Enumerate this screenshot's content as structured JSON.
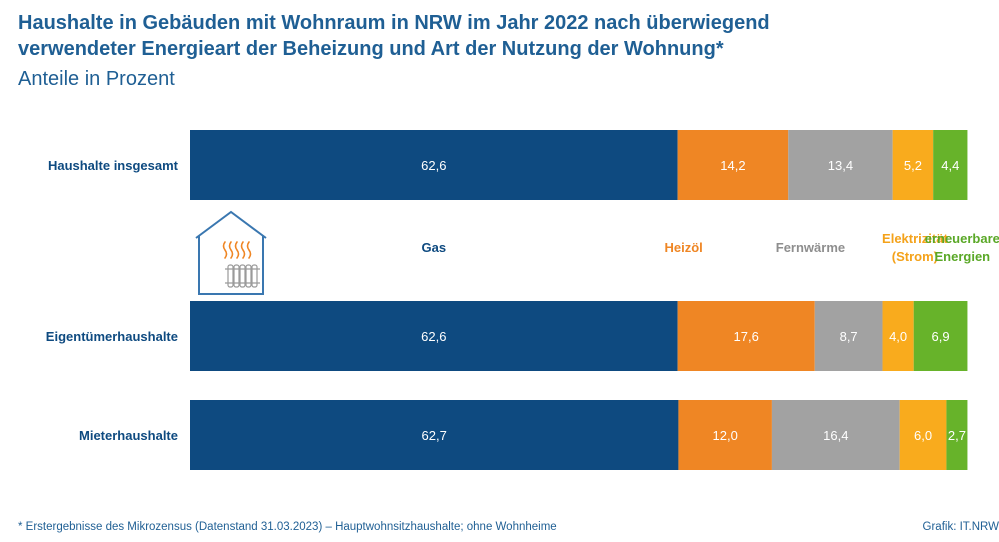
{
  "title_line1": "Haushalte in Gebäuden mit Wohnraum in NRW im Jahr 2022 nach überwiegend",
  "title_line2": "verwendeter Energieart der Beheizung und Art der Nutzung der Wohnung*",
  "subtitle": "Anteile in Prozent",
  "footnote": "* Erstergebnisse des Mikrozensus (Datenstand 31.03.2023) – Hauptwohnsitzhaushalte; ohne Wohnheime",
  "source": "Grafik: IT.NRW",
  "icon": "house-radiator-icon",
  "chart_data": {
    "type": "bar",
    "orientation": "horizontal",
    "stacked": true,
    "title": "Haushalte in Gebäuden mit Wohnraum in NRW im Jahr 2022 nach überwiegend verwendeter Energieart der Beheizung und Art der Nutzung der Wohnung*",
    "subtitle": "Anteile in Prozent",
    "xlim": [
      0,
      100
    ],
    "grid": false,
    "legend_placement": "inline-between-bars",
    "categories": [
      "Haushalte insgesamt",
      "Eigentümerhaushalte",
      "Mieterhaushalte"
    ],
    "series": [
      {
        "name": "Gas",
        "label_lines": [
          "Gas"
        ],
        "color": "#0e4a80",
        "label_color": "#0e4a80",
        "values": [
          62.6,
          62.6,
          62.7
        ],
        "labels": [
          "62,6",
          "62,6",
          "62,7"
        ]
      },
      {
        "name": "Heizöl",
        "label_lines": [
          "Heizöl"
        ],
        "color": "#ef8624",
        "label_color": "#ef8624",
        "values": [
          14.2,
          17.6,
          12.0
        ],
        "labels": [
          "14,2",
          "17,6",
          "12,0"
        ]
      },
      {
        "name": "Fernwärme",
        "label_lines": [
          "Fernwärme"
        ],
        "color": "#a2a2a2",
        "label_color": "#8e8e8e",
        "values": [
          13.4,
          8.7,
          16.4
        ],
        "labels": [
          "13,4",
          "8,7",
          "16,4"
        ]
      },
      {
        "name": "Elektrizität (Strom)",
        "label_lines": [
          "Elektrizität",
          "(Strom)"
        ],
        "color": "#f9ab1d",
        "label_color": "#f4a21a",
        "values": [
          5.2,
          4.0,
          6.0
        ],
        "labels": [
          "5,2",
          "4,0",
          "6,0"
        ]
      },
      {
        "name": "erneuerbare Energien",
        "label_lines": [
          "erneuerbare",
          "Energien"
        ],
        "color": "#67b32a",
        "label_color": "#5aa827",
        "values": [
          4.4,
          6.9,
          2.7
        ],
        "labels": [
          "4,4",
          "6,9",
          "2,7"
        ]
      }
    ]
  }
}
